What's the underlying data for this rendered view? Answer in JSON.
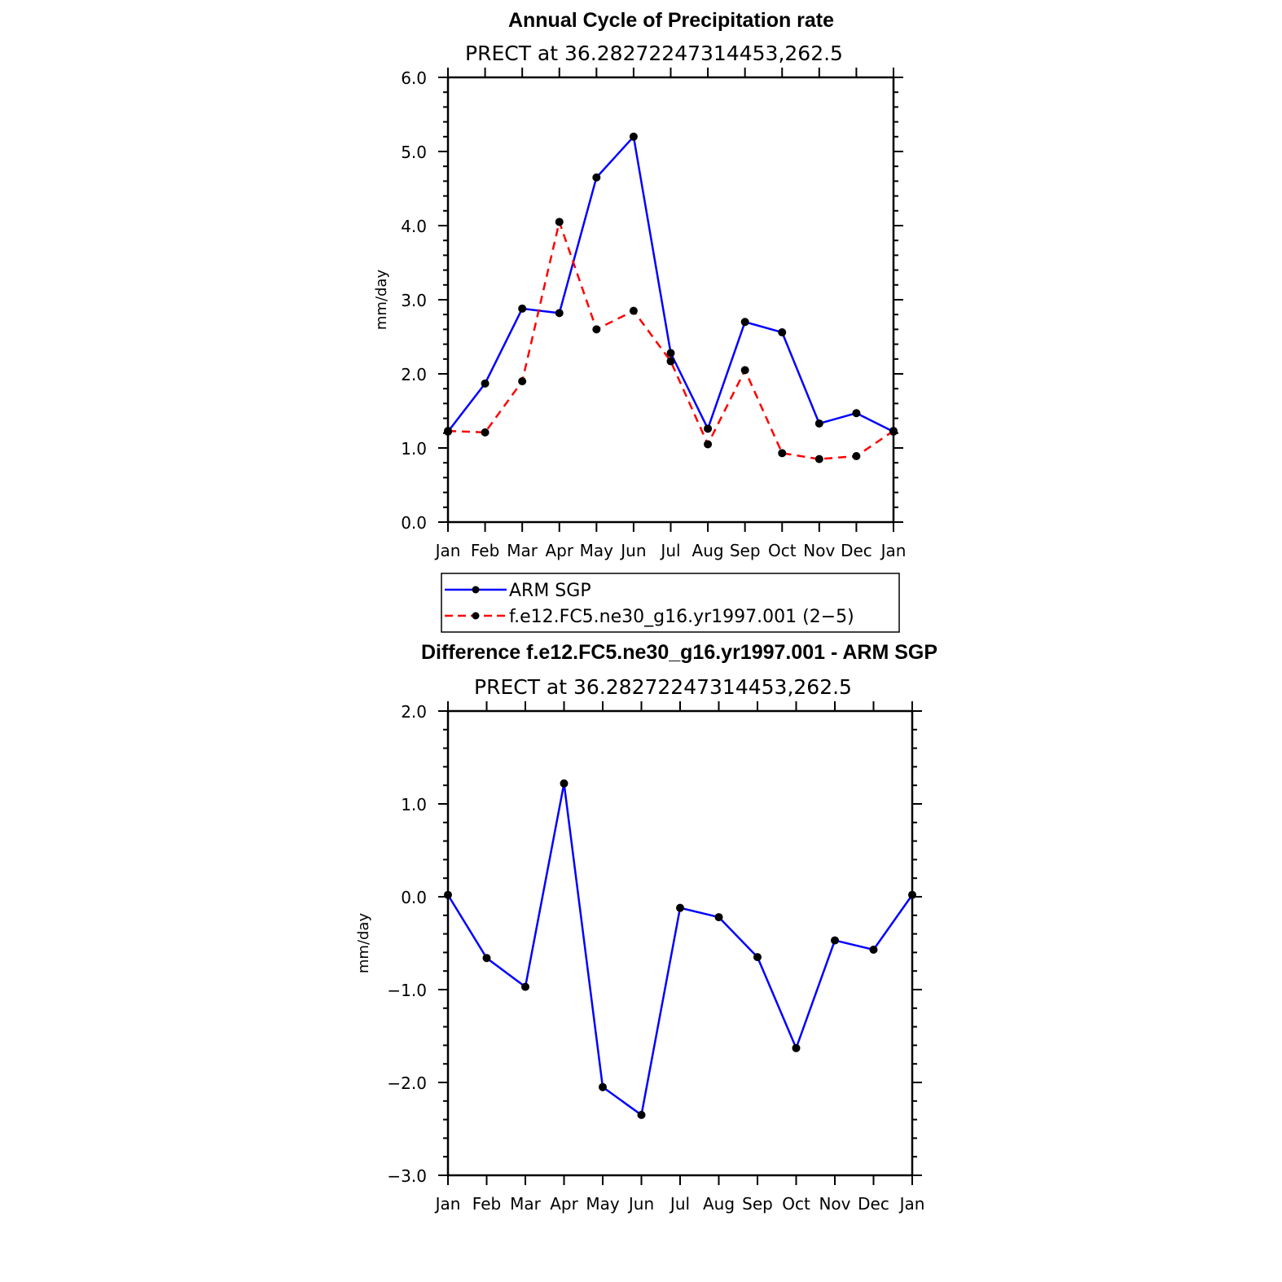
{
  "chart_data": [
    {
      "type": "line",
      "title": "Annual Cycle of Precipitation rate",
      "subtitle": "PRECT at 36.28272247314453,262.5",
      "xlabel": "",
      "ylabel": "mm/day",
      "categories": [
        "Jan",
        "Feb",
        "Mar",
        "Apr",
        "May",
        "Jun",
        "Jul",
        "Aug",
        "Sep",
        "Oct",
        "Nov",
        "Dec",
        "Jan"
      ],
      "ylim": [
        0,
        6
      ],
      "yticks": [
        "0.0",
        "1.0",
        "2.0",
        "3.0",
        "4.0",
        "5.0",
        "6.0"
      ],
      "series": [
        {
          "name": "ARM SGP",
          "color": "#0000ff",
          "dashed": false,
          "values": [
            1.22,
            1.87,
            2.88,
            2.82,
            4.65,
            5.2,
            2.28,
            1.26,
            2.7,
            2.56,
            1.33,
            1.47,
            1.22
          ]
        },
        {
          "name": "f.e12.FC5.ne30_g16.yr1997.001 (2−5)",
          "color": "#ff0000",
          "dashed": true,
          "values": [
            1.23,
            1.21,
            1.9,
            4.05,
            2.6,
            2.85,
            2.17,
            1.05,
            2.05,
            0.93,
            0.85,
            0.89,
            1.23
          ]
        }
      ]
    },
    {
      "type": "line",
      "title": "Difference f.e12.FC5.ne30_g16.yr1997.001 - ARM SGP",
      "subtitle": "PRECT at 36.28272247314453,262.5",
      "xlabel": "",
      "ylabel": "mm/day",
      "categories": [
        "Jan",
        "Feb",
        "Mar",
        "Apr",
        "May",
        "Jun",
        "Jul",
        "Aug",
        "Sep",
        "Oct",
        "Nov",
        "Dec",
        "Jan"
      ],
      "ylim": [
        -3,
        2
      ],
      "yticks": [
        "−3.0",
        "−2.0",
        "−1.0",
        "0.0",
        "1.0",
        "2.0"
      ],
      "series": [
        {
          "name": "Difference",
          "color": "#0000ff",
          "dashed": false,
          "values": [
            0.02,
            -0.66,
            -0.97,
            1.22,
            -2.05,
            -2.35,
            -0.12,
            -0.22,
            -0.65,
            -1.63,
            -0.47,
            -0.57,
            0.02
          ]
        }
      ]
    }
  ]
}
